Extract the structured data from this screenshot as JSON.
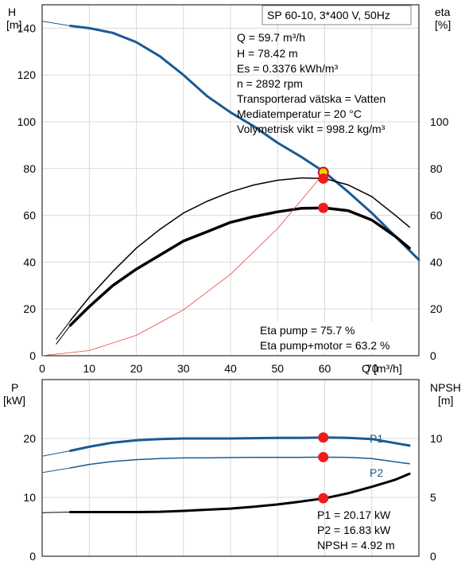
{
  "chart_data": [
    {
      "type": "line",
      "xlabel": "Q",
      "xunit": "[m³/h]",
      "ylabel": "H",
      "yunit": "[m]",
      "y2label": "eta",
      "y2unit": "[%]",
      "xlim": [
        0,
        80
      ],
      "ylim": [
        0,
        150
      ],
      "y2lim": [
        0,
        150
      ],
      "x_ticks": [
        0,
        10,
        20,
        30,
        40,
        50,
        60,
        70
      ],
      "y_ticks": [
        0,
        20,
        40,
        60,
        80,
        100,
        120,
        140
      ],
      "y2_ticks": [
        0,
        20,
        40,
        60,
        80,
        100
      ],
      "grid": true,
      "header_box": "SP 60-10, 3*400 V, 50Hz",
      "info_lines": [
        "Q = 59.7 m³/h",
        "H = 78.42 m",
        "Es = 0.3376 kWh/m³",
        "n = 2892 rpm",
        "Transporterad vätska = Vatten",
        "Mediatemperatur = 20 °C",
        "Volymetrisk vikt = 998.2 kg/m³"
      ],
      "legend_lines": [
        "Eta pump = 75.7 %",
        "Eta pump+motor = 63.2 %"
      ],
      "series": [
        {
          "color": "#1a5a93",
          "width": 3,
          "x": [
            6,
            10,
            15,
            20,
            25,
            30,
            35,
            40,
            45,
            50,
            55,
            60,
            65,
            70,
            75,
            80
          ],
          "y": [
            141,
            140,
            138,
            134,
            128,
            120,
            111,
            104,
            98,
            91,
            85,
            78.4,
            70,
            61,
            51,
            41
          ]
        },
        {
          "color": "#1a5a93",
          "width": 1,
          "x": [
            0,
            6
          ],
          "y": [
            143,
            141
          ]
        },
        {
          "color": "#000000",
          "width": 1.5,
          "x": [
            6,
            10,
            15,
            20,
            25,
            30,
            35,
            40,
            45,
            50,
            55,
            60,
            65,
            70,
            75,
            78
          ],
          "y": [
            15,
            25,
            36,
            46,
            54,
            61,
            66,
            70,
            73,
            75,
            76,
            75.7,
            73,
            68,
            60,
            55
          ]
        },
        {
          "color": "#000000",
          "width": 1,
          "x": [
            3,
            6
          ],
          "y": [
            7,
            15
          ]
        },
        {
          "color": "#000000",
          "width": 3.5,
          "x": [
            6,
            10,
            15,
            20,
            25,
            30,
            35,
            40,
            45,
            50,
            55,
            60,
            65,
            70,
            75,
            78
          ],
          "y": [
            13,
            21,
            30,
            37,
            43,
            49,
            53,
            57,
            59.5,
            61.5,
            63,
            63.2,
            62,
            58,
            51,
            46
          ]
        },
        {
          "color": "#000000",
          "width": 1,
          "x": [
            3,
            6
          ],
          "y": [
            5,
            13
          ]
        },
        {
          "color": "#e0483c",
          "width": 0.8,
          "x": [
            0,
            10,
            20,
            30,
            40,
            50,
            60
          ],
          "y": [
            0,
            2.2,
            8.7,
            19.6,
            34.8,
            54.4,
            78.4
          ]
        }
      ],
      "markers": [
        {
          "x": 59.7,
          "y": 78.42,
          "color": "#f2d400",
          "ring": "#c8102e"
        },
        {
          "x": 59.7,
          "y": 75.7,
          "color": "#ee1c1c"
        },
        {
          "x": 59.7,
          "y": 63.2,
          "color": "#ee1c1c"
        }
      ]
    },
    {
      "type": "line",
      "ylabel": "P",
      "yunit": "[kW]",
      "y2label": "NPSH",
      "y2unit": "[m]",
      "xlim": [
        0,
        80
      ],
      "ylim": [
        0,
        30
      ],
      "y2lim": [
        0,
        15
      ],
      "x_ticks": [
        0,
        10,
        20,
        30,
        40,
        50,
        60,
        70
      ],
      "y_ticks": [
        0,
        10,
        20
      ],
      "y2_ticks": [
        0,
        5,
        10
      ],
      "grid": true,
      "legend_lines": [
        "P1 = 20.17 kW",
        "P2 = 16.83 kW",
        "NPSH = 4.92 m"
      ],
      "series": [
        {
          "name": "P1",
          "axis": "left",
          "color": "#1a5a93",
          "width": 3,
          "x": [
            6,
            10,
            15,
            20,
            25,
            30,
            35,
            40,
            45,
            50,
            55,
            60,
            65,
            70,
            78
          ],
          "y": [
            17.9,
            18.6,
            19.3,
            19.7,
            19.9,
            20.0,
            20.0,
            20.0,
            20.05,
            20.1,
            20.1,
            20.17,
            20.1,
            19.9,
            18.8
          ]
        },
        {
          "axis": "left",
          "color": "#1a5a93",
          "width": 1,
          "x": [
            0,
            6
          ],
          "y": [
            17.0,
            17.9
          ]
        },
        {
          "name": "P2",
          "axis": "left",
          "color": "#1a5a93",
          "width": 1.5,
          "x": [
            6,
            10,
            15,
            20,
            25,
            30,
            35,
            40,
            45,
            50,
            55,
            60,
            65,
            70,
            78
          ],
          "y": [
            15.0,
            15.6,
            16.1,
            16.4,
            16.6,
            16.7,
            16.7,
            16.75,
            16.8,
            16.8,
            16.8,
            16.83,
            16.8,
            16.6,
            15.7
          ]
        },
        {
          "axis": "left",
          "color": "#1a5a93",
          "width": 1,
          "x": [
            0,
            6
          ],
          "y": [
            14.2,
            15.0
          ]
        },
        {
          "axis": "right",
          "color": "#000000",
          "width": 3,
          "x": [
            6,
            10,
            15,
            20,
            25,
            30,
            35,
            40,
            45,
            50,
            55,
            60,
            65,
            70,
            75,
            78
          ],
          "y": [
            3.75,
            3.75,
            3.75,
            3.75,
            3.78,
            3.85,
            3.95,
            4.05,
            4.2,
            4.4,
            4.65,
            4.92,
            5.35,
            5.9,
            6.5,
            7.0
          ]
        },
        {
          "axis": "right",
          "color": "#000000",
          "width": 1,
          "x": [
            0,
            6
          ],
          "y": [
            3.7,
            3.75
          ]
        }
      ],
      "markers": [
        {
          "x": 59.7,
          "y": 20.17,
          "axis": "left",
          "color": "#ee1c1c"
        },
        {
          "x": 59.7,
          "y": 16.83,
          "axis": "left",
          "color": "#ee1c1c"
        },
        {
          "x": 59.7,
          "y": 4.92,
          "axis": "right",
          "color": "#ee1c1c"
        }
      ],
      "curve_labels": [
        {
          "text": "P1",
          "color": "#1a5a93"
        },
        {
          "text": "P2",
          "color": "#1a5a93"
        }
      ]
    }
  ]
}
